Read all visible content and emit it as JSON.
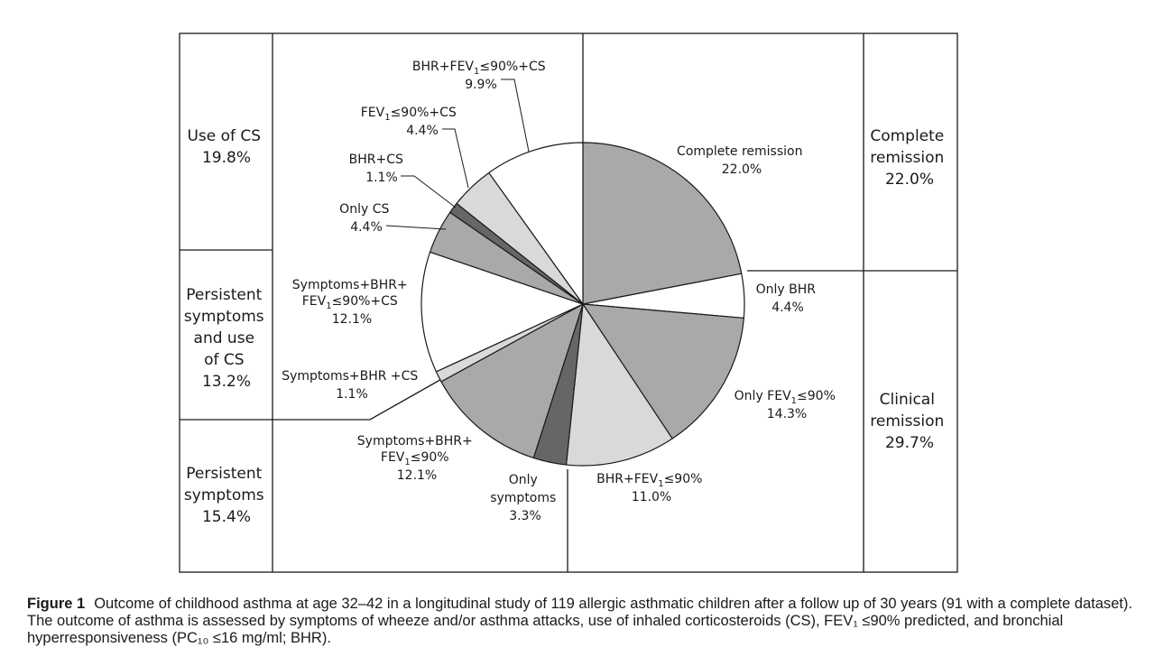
{
  "chart_data": {
    "type": "pie",
    "slices": [
      {
        "name": "Complete remission",
        "value": 22.0,
        "value_label": "22.0%",
        "color": "#a9a9a9"
      },
      {
        "name": "Only BHR",
        "value": 4.4,
        "value_label": "4.4%",
        "color": "#ffffff"
      },
      {
        "name": "Only FEV₁≤90%",
        "value": 14.3,
        "value_label": "14.3%",
        "color": "#a9a9a9"
      },
      {
        "name": "BHR+FEV₁≤90%",
        "value": 11.0,
        "value_label": "11.0%",
        "color": "#d9d9d9"
      },
      {
        "name": "Only symptoms",
        "value": 3.3,
        "value_label": "3.3%",
        "color": "#666666"
      },
      {
        "name": "Symptoms+BHR+ FEV₁≤90%",
        "value": 12.1,
        "value_label": "12.1%",
        "color": "#a9a9a9"
      },
      {
        "name": "Symptoms+BHR +CS",
        "value": 1.1,
        "value_label": "1.1%",
        "color": "#d9d9d9"
      },
      {
        "name": "Symptoms+BHR+ FEV₁≤90%+CS",
        "value": 12.1,
        "value_label": "12.1%",
        "color": "#ffffff"
      },
      {
        "name": "Only CS",
        "value": 4.4,
        "value_label": "4.4%",
        "color": "#a9a9a9"
      },
      {
        "name": "BHR+CS",
        "value": 1.1,
        "value_label": "1.1%",
        "color": "#666666"
      },
      {
        "name": "FEV₁≤90%+CS",
        "value": 4.4,
        "value_label": "4.4%",
        "color": "#d9d9d9"
      },
      {
        "name": "BHR+FEV₁≤90%+CS",
        "value": 9.9,
        "value_label": "9.9%",
        "color": "#ffffff"
      }
    ],
    "groups": [
      {
        "name": "Use of CS",
        "value_label": "19.8%"
      },
      {
        "name": "Persistent symptoms and use of CS",
        "value_label": "13.2%"
      },
      {
        "name": "Persistent symptoms",
        "value_label": "15.4%"
      },
      {
        "name": "Complete remission",
        "value_label": "22.0%"
      },
      {
        "name": "Clinical remission",
        "value_label": "29.7%"
      }
    ]
  },
  "caption": {
    "label": "Figure 1",
    "text": "Outcome of childhood asthma at age 32–42 in a longitudinal study of 119 allergic asthmatic children after a follow up of 30 years (91 with a complete dataset). The outcome of asthma is assessed by symptoms of wheeze and/or asthma attacks, use of inhaled corticosteroids (CS), FEV₁ ≤90% predicted, and bronchial hyperresponsiveness (PC₁₀ ≤16 mg/ml; BHR)."
  }
}
